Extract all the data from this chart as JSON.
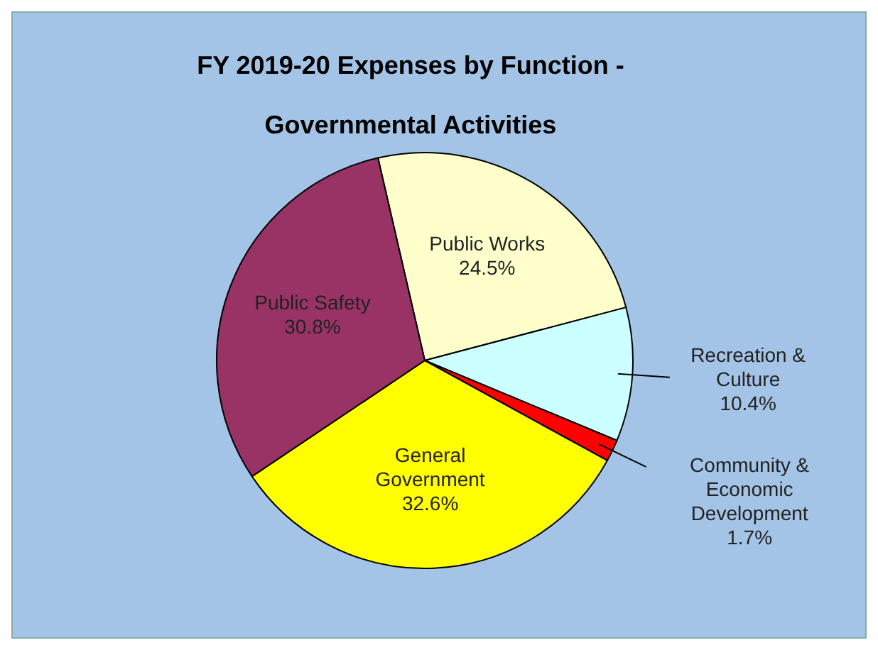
{
  "chart_data": {
    "type": "pie",
    "title": "FY 2019-20 Expenses by Function - Governmental Activities",
    "categories": [
      "Public Works",
      "Recreation & Culture",
      "Community & Economic Development",
      "General Government",
      "Public Safety"
    ],
    "values": [
      24.5,
      10.4,
      1.7,
      32.6,
      30.8
    ],
    "value_labels": [
      "24.5%",
      "10.4%",
      "1.7%",
      "32.6%",
      "30.8%"
    ],
    "colors": [
      "#ffffcc",
      "#ccffff",
      "#ff0000",
      "#ffff00",
      "#993366"
    ]
  }
}
